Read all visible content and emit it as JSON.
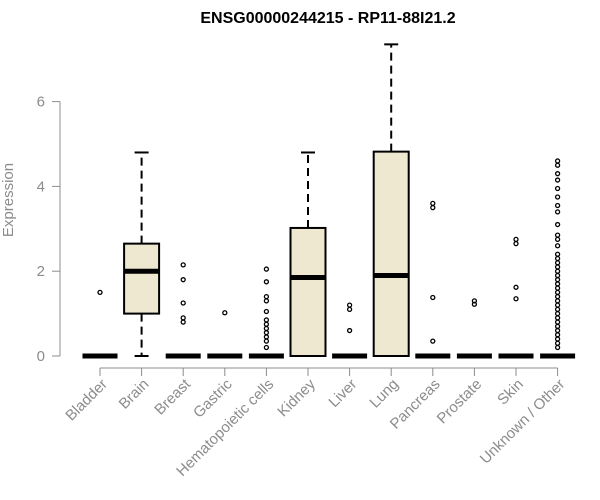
{
  "chart_data": {
    "type": "box",
    "title": "ENSG00000244215 - RP11-88I21.2",
    "xlabel": "",
    "ylabel": "Expression",
    "ylim": [
      0,
      7.4
    ],
    "yticks": [
      0,
      2,
      4,
      6
    ],
    "grid": false,
    "colors": {
      "box_fill": "#efe8d1",
      "box_stroke": "#000000",
      "axis": "#8c8c8c"
    },
    "categories": [
      "Bladder",
      "Brain",
      "Breast",
      "Gastric",
      "Hematopoietic cells",
      "Kidney",
      "Liver",
      "Lung",
      "Pancreas",
      "Prostate",
      "Skin",
      "Unknown / Other"
    ],
    "boxes": [
      {
        "name": "Bladder",
        "whisker_low": 0,
        "q1": 0,
        "median": 0,
        "q3": 0,
        "whisker_high": 0,
        "outliers": [
          1.5
        ]
      },
      {
        "name": "Brain",
        "whisker_low": 0,
        "q1": 1,
        "median": 2,
        "q3": 2.65,
        "whisker_high": 4.8,
        "outliers": []
      },
      {
        "name": "Breast",
        "whisker_low": 0,
        "q1": 0,
        "median": 0,
        "q3": 0,
        "whisker_high": 0,
        "outliers": [
          0.8,
          0.9,
          1.25,
          1.8,
          2.15
        ]
      },
      {
        "name": "Gastric",
        "whisker_low": 0,
        "q1": 0,
        "median": 0,
        "q3": 0,
        "whisker_high": 0,
        "outliers": [
          1.02
        ]
      },
      {
        "name": "Hematopoietic cells",
        "whisker_low": 0,
        "q1": 0,
        "median": 0,
        "q3": 0,
        "whisker_high": 0,
        "outliers": [
          0.2,
          0.35,
          0.45,
          0.55,
          0.65,
          0.75,
          0.85,
          1.05,
          1.3,
          1.4,
          1.75,
          2.05
        ]
      },
      {
        "name": "Kidney",
        "whisker_low": 0,
        "q1": 0,
        "median": 1.85,
        "q3": 3.02,
        "whisker_high": 4.8,
        "outliers": []
      },
      {
        "name": "Liver",
        "whisker_low": 0,
        "q1": 0,
        "median": 0,
        "q3": 0,
        "whisker_high": 0,
        "outliers": [
          0.6,
          1.1,
          1.2
        ]
      },
      {
        "name": "Lung",
        "whisker_low": 0,
        "q1": 0,
        "median": 1.9,
        "q3": 4.82,
        "whisker_high": 7.35,
        "outliers": []
      },
      {
        "name": "Pancreas",
        "whisker_low": 0,
        "q1": 0,
        "median": 0,
        "q3": 0,
        "whisker_high": 0,
        "outliers": [
          0.35,
          1.38,
          3.5,
          3.6
        ]
      },
      {
        "name": "Prostate",
        "whisker_low": 0,
        "q1": 0,
        "median": 0,
        "q3": 0,
        "whisker_high": 0,
        "outliers": [
          1.22,
          1.3
        ]
      },
      {
        "name": "Skin",
        "whisker_low": 0,
        "q1": 0,
        "median": 0,
        "q3": 0,
        "whisker_high": 0,
        "outliers": [
          1.35,
          1.62,
          2.65,
          2.75
        ]
      },
      {
        "name": "Unknown / Other",
        "whisker_low": 0,
        "q1": 0,
        "median": 0,
        "q3": 0,
        "whisker_high": 0,
        "outliers": [
          0.2,
          0.3,
          0.4,
          0.5,
          0.6,
          0.7,
          0.8,
          0.9,
          1.0,
          1.1,
          1.2,
          1.3,
          1.4,
          1.5,
          1.6,
          1.7,
          1.8,
          1.9,
          2.0,
          2.1,
          2.2,
          2.3,
          2.4,
          2.6,
          2.75,
          2.85,
          3.1,
          3.4,
          3.55,
          3.75,
          3.95,
          4.15,
          4.3,
          4.5,
          4.6
        ]
      }
    ]
  }
}
